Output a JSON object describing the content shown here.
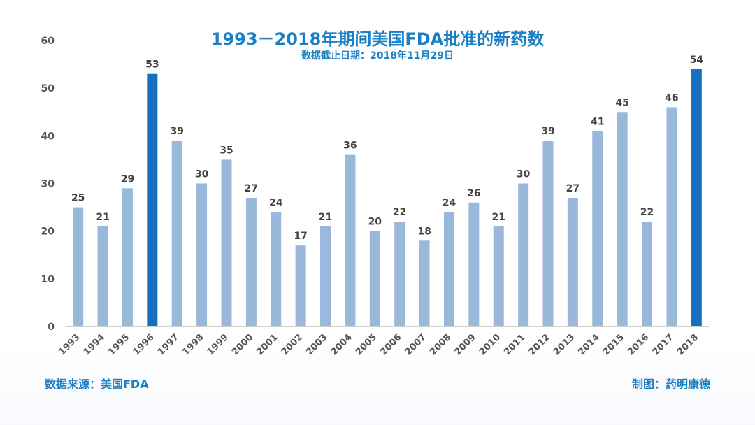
{
  "header": {
    "title": "1993－2018年期间美国FDA批准的新药数",
    "subtitle": "数据截止日期：2018年11月29日"
  },
  "footer": {
    "source": "数据来源：美国FDA",
    "credit": "制图：药明康德"
  },
  "colors": {
    "bar": "#9ab7dc",
    "highlight": "#1570bf",
    "title": "#1a7fc4",
    "axis": "#d0d0d0"
  },
  "chart_data": {
    "type": "bar",
    "title": "1993－2018年期间美国FDA批准的新药数",
    "subtitle": "数据截止日期：2018年11月29日",
    "xlabel": "",
    "ylabel": "",
    "ylim": [
      0,
      60
    ],
    "yticks": [
      0,
      10,
      20,
      30,
      40,
      50,
      60
    ],
    "grid": false,
    "categories": [
      "1993",
      "1994",
      "1995",
      "1996",
      "1997",
      "1998",
      "1999",
      "2000",
      "2001",
      "2002",
      "2003",
      "2004",
      "2005",
      "2006",
      "2007",
      "2008",
      "2009",
      "2010",
      "2011",
      "2012",
      "2013",
      "2014",
      "2015",
      "2016",
      "2017",
      "2018"
    ],
    "values": [
      25,
      21,
      29,
      53,
      39,
      30,
      35,
      27,
      24,
      17,
      21,
      36,
      20,
      22,
      18,
      24,
      26,
      21,
      30,
      39,
      27,
      41,
      45,
      22,
      46,
      54
    ],
    "highlighted": [
      "1996",
      "2018"
    ]
  }
}
